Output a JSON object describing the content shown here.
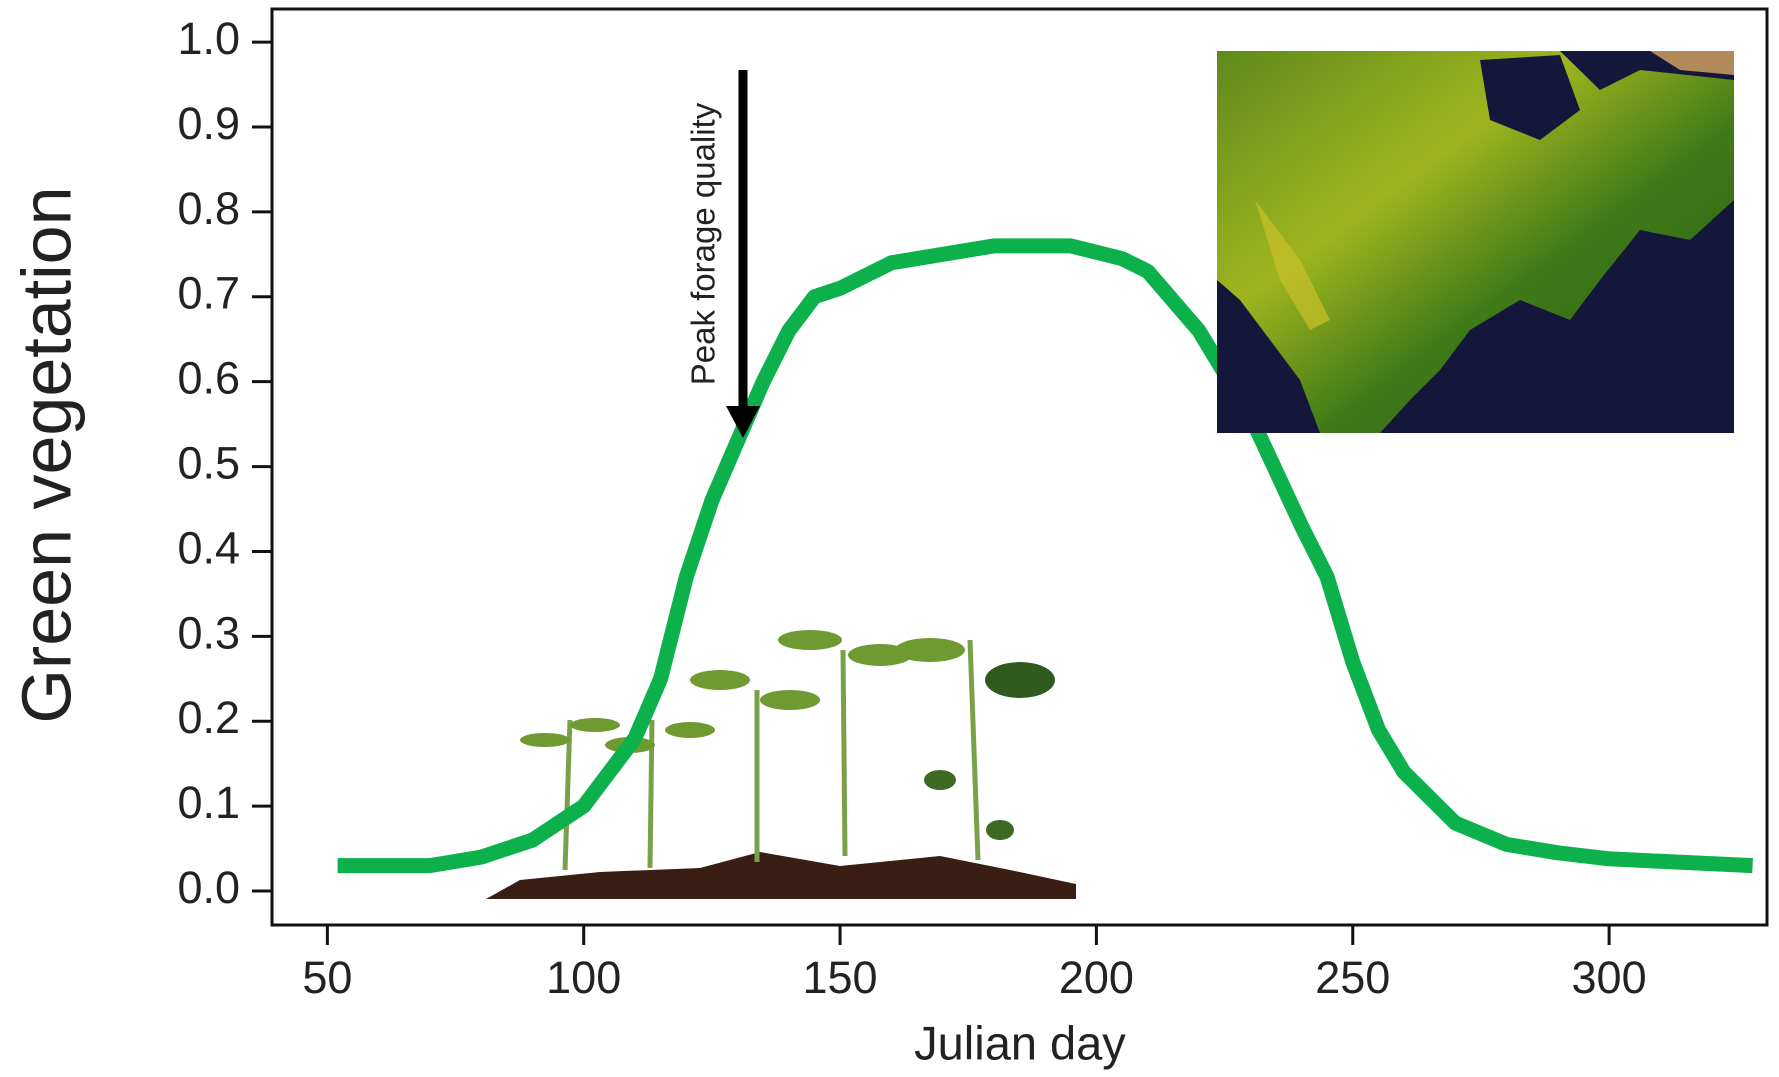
{
  "chart_data": {
    "type": "line",
    "xlabel": "Julian day",
    "ylabel": "Green vegetation",
    "annotation": "Peak forage quality",
    "x": [
      52,
      70,
      80,
      90,
      100,
      110,
      115,
      120,
      125,
      130,
      135,
      140,
      145,
      150,
      160,
      180,
      195,
      205,
      210,
      220,
      230,
      240,
      245,
      250,
      255,
      260,
      270,
      280,
      290,
      300,
      310,
      328
    ],
    "series": [
      {
        "color": "#0db14b",
        "values": [
          0.03,
          0.03,
          0.04,
          0.06,
          0.1,
          0.18,
          0.25,
          0.37,
          0.46,
          0.53,
          0.6,
          0.66,
          0.7,
          0.71,
          0.74,
          0.76,
          0.76,
          0.745,
          0.73,
          0.66,
          0.56,
          0.43,
          0.37,
          0.27,
          0.19,
          0.14,
          0.08,
          0.055,
          0.045,
          0.038,
          0.035,
          0.03
        ]
      }
    ],
    "xlim": [
      39.2,
      330.8
    ],
    "ylim": [
      -0.04,
      1.039
    ],
    "xticks": [
      50,
      100,
      150,
      200,
      250,
      300
    ],
    "yticks": [
      {
        "value": 0,
        "label": "0.0"
      },
      0.1,
      0.2,
      0.3,
      0.4,
      0.5,
      0.6,
      0.7,
      0.8,
      0.9,
      {
        "value": 1,
        "label": "1.0"
      }
    ]
  }
}
